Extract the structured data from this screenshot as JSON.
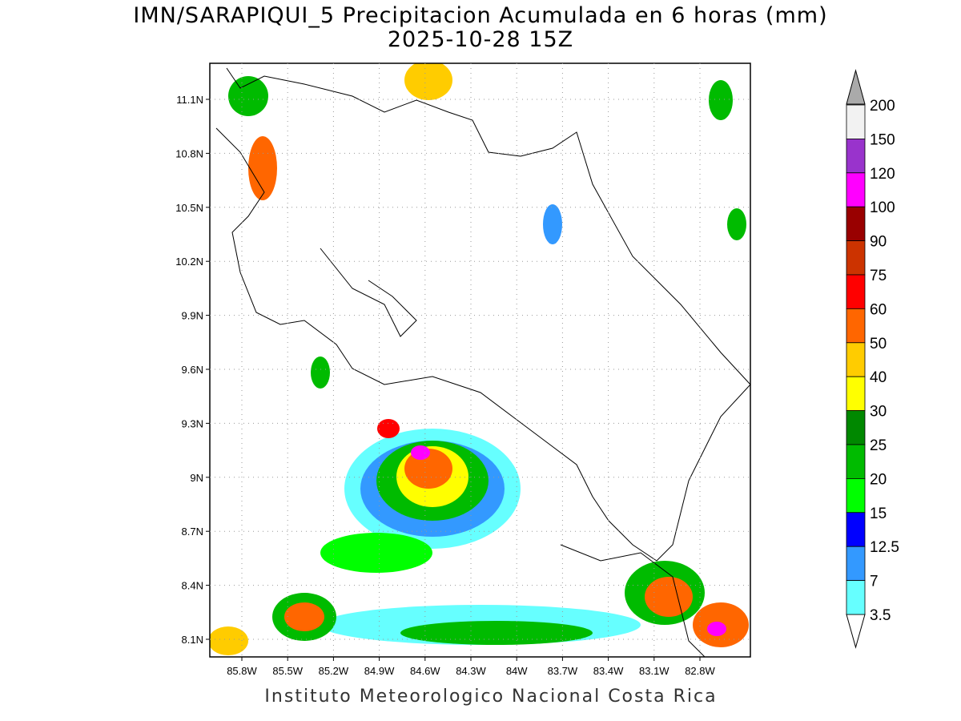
{
  "header": {
    "title": "IMN/SARAPIQUI_5 Precipitacion Acumulada en 6 horas (mm)",
    "subtitle": "2025-10-28 15Z"
  },
  "map": {
    "lat_labels": [
      "11.1N",
      "10.8N",
      "10.5N",
      "10.2N",
      "9.9N",
      "9.6N",
      "9.3N",
      "9N",
      "8.7N",
      "8.4N",
      "8.1N"
    ],
    "lon_labels": [
      "85.8W",
      "85.5W",
      "85.2W",
      "84.9W",
      "84.6W",
      "84.3W",
      "84W",
      "83.7W",
      "83.4W",
      "83.1W",
      "82.8W"
    ]
  },
  "colorbar": {
    "labels": [
      "200",
      "150",
      "120",
      "100",
      "90",
      "75",
      "60",
      "50",
      "40",
      "30",
      "25",
      "20",
      "15",
      "12.5",
      "7",
      "3.5"
    ],
    "colors": [
      "#f2f2f2",
      "#9933cc",
      "#ff00ff",
      "#990000",
      "#cc3300",
      "#ff0000",
      "#ff6600",
      "#ffcc00",
      "#ffff00",
      "#008800",
      "#00bb00",
      "#00ff00",
      "#0000ff",
      "#3399ff",
      "#66ffff"
    ]
  },
  "footer": "Instituto Meteorologico Nacional Costa Rica"
}
